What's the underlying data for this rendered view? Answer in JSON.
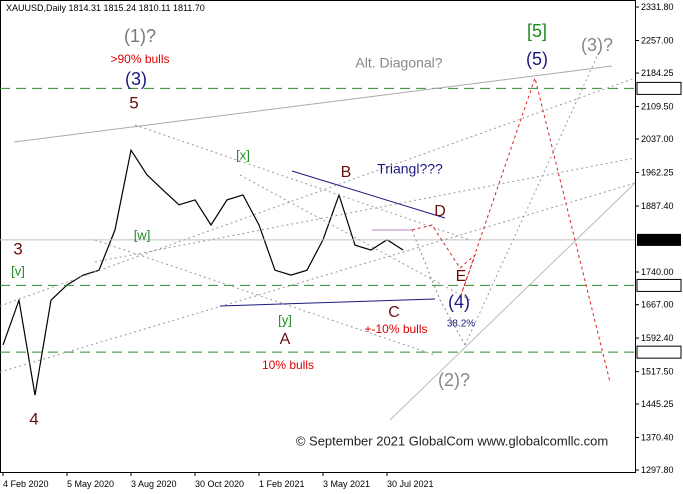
{
  "chart_data": {
    "type": "line",
    "subtitle": "XAUUSD,Daily  1814.31 1815.24 1810.11 1811.70",
    "categories": [
      "4 Feb 2020",
      null,
      null,
      null,
      "5 May 2020",
      null,
      null,
      null,
      "3 Aug 2020",
      null,
      null,
      null,
      "30 Oct 2020",
      null,
      null,
      null,
      "1 Feb 2021",
      null,
      null,
      null,
      "3 May 2021",
      null,
      null,
      null,
      "30 Jul 2021",
      null
    ],
    "series": [
      {
        "name": "XAUUSD",
        "color": "#000000",
        "values": [
          1577,
          1677,
          1465,
          1677,
          1711,
          1733,
          1744,
          1834,
          2012,
          1957,
          1923,
          1890,
          1901,
          1845,
          1901,
          1912,
          1845,
          1744,
          1733,
          1744,
          1812,
          1912,
          1800,
          1789,
          1812,
          1789
        ]
      }
    ],
    "ylim": [
      1297.8,
      2331.8
    ],
    "yticks": [
      {
        "value": 2331.8,
        "label": "2331.80"
      },
      {
        "value": 2257,
        "label": "2257.00"
      },
      {
        "value": 2184.25,
        "label": "2184.25"
      },
      {
        "value": 2109.5,
        "label": "2109.50"
      },
      {
        "value": 2037,
        "label": "2037.00"
      },
      {
        "value": 1962.25,
        "label": "1962.25"
      },
      {
        "value": 1887.4,
        "label": "1887.40"
      },
      {
        "value": 1740,
        "label": "1740.00"
      },
      {
        "value": 1667,
        "label": "1667.00"
      },
      {
        "value": 1592.4,
        "label": "1592.40"
      },
      {
        "value": 1517.5,
        "label": "1517.50"
      },
      {
        "value": 1445.25,
        "label": "1445.25"
      },
      {
        "value": 1370.4,
        "label": "1370.40"
      },
      {
        "value": 1297.8,
        "label": "1297.80"
      }
    ],
    "levels": [
      {
        "value": 2150,
        "label": "2150.00"
      },
      {
        "value": 1710,
        "label": "1710.00"
      },
      {
        "value": 1561,
        "label": "1561.00"
      }
    ],
    "level_color": "#2e8b2e",
    "last_price": {
      "value": 1811.7,
      "label": "1811.70"
    },
    "annotations": [
      "(1)?",
      ">90% bulls",
      "(3)",
      "5",
      "Alt. Diagonal?",
      "[5]",
      "(5)",
      "(3)?",
      "[x]",
      "Triangl???",
      "B",
      "D",
      "3",
      "[v]",
      "[w]",
      "E",
      "(4)",
      "38.2%",
      "[y]",
      "C",
      "+-10% bulls",
      "A",
      "10% bulls",
      "4",
      "(2)?",
      "© September 2021 GlobalCom www.globalcomllc.com"
    ]
  }
}
